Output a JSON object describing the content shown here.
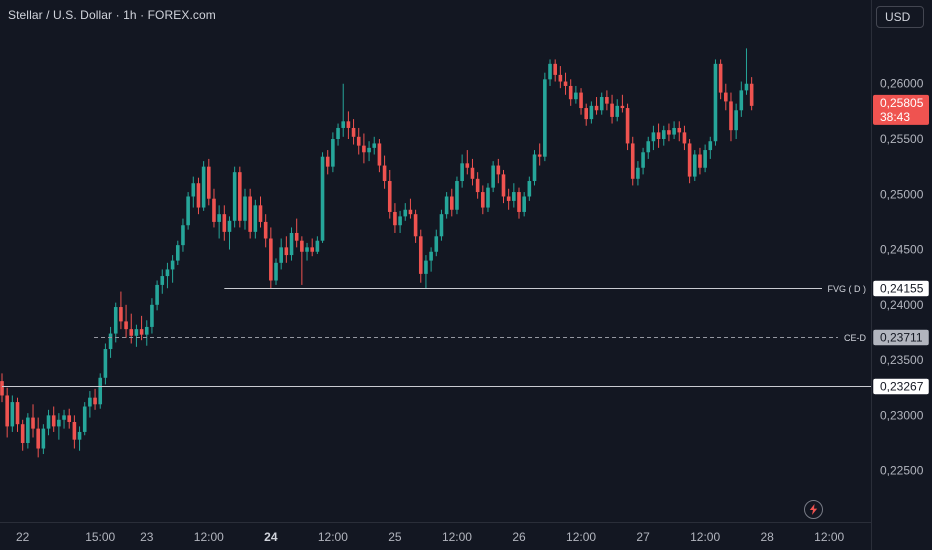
{
  "header": {
    "title": "Stellar / U.S. Dollar · 1h · FOREX.com",
    "currency": "USD"
  },
  "colors": {
    "background": "#131722",
    "up": "#26a69a",
    "down": "#ef5350",
    "text": "#d1d4dc",
    "axis_text": "#b2b5be",
    "line": "#d1d4dc"
  },
  "price_badge": {
    "price": "0,25805",
    "countdown": "38:43"
  },
  "lines": [
    {
      "name": "fvg-d-line",
      "label": "FVG ( D )",
      "value": "0,24155",
      "y": 0.24155,
      "style": "solid",
      "x_start": "23 18:00"
    },
    {
      "name": "ce-d-line",
      "label": "CE-D",
      "value": "0,23711",
      "y": 0.23711,
      "style": "dashed",
      "x_start": "22 13:00"
    },
    {
      "name": "level-line",
      "label": "",
      "value": "0,23267",
      "y": 0.23267,
      "style": "solid",
      "x_start": "22 00:00"
    }
  ],
  "chart_data": {
    "type": "candlestick",
    "title": "Stellar / U.S. Dollar · 1h · FOREX.com",
    "xlabel": "",
    "ylabel": "",
    "ylim": [
      0.2218,
      0.2645
    ],
    "y_ticks": [
      {
        "v": 0.26,
        "label": "0,26000"
      },
      {
        "v": 0.255,
        "label": "0,25500"
      },
      {
        "v": 0.25,
        "label": "0,25000"
      },
      {
        "v": 0.245,
        "label": "0,24500"
      },
      {
        "v": 0.24,
        "label": "0,24000"
      },
      {
        "v": 0.235,
        "label": "0,23500"
      },
      {
        "v": 0.23,
        "label": "0,23000"
      },
      {
        "v": 0.225,
        "label": "0,22500"
      }
    ],
    "x_ticks": [
      {
        "i": 4,
        "label": "22",
        "bold": false
      },
      {
        "i": 19,
        "label": "15:00",
        "bold": false
      },
      {
        "i": 28,
        "label": "23",
        "bold": false
      },
      {
        "i": 40,
        "label": "12:00",
        "bold": false
      },
      {
        "i": 52,
        "label": "24",
        "bold": true
      },
      {
        "i": 64,
        "label": "12:00",
        "bold": false
      },
      {
        "i": 76,
        "label": "25",
        "bold": false
      },
      {
        "i": 88,
        "label": "12:00",
        "bold": false
      },
      {
        "i": 100,
        "label": "26",
        "bold": false
      },
      {
        "i": 112,
        "label": "12:00",
        "bold": false
      },
      {
        "i": 124,
        "label": "27",
        "bold": false
      },
      {
        "i": 136,
        "label": "12:00",
        "bold": false
      },
      {
        "i": 148,
        "label": "28",
        "bold": false
      },
      {
        "i": 160,
        "label": "12:00",
        "bold": false
      }
    ],
    "grid": false,
    "legend": "none",
    "candles": [
      [
        0.2331,
        0.2338,
        0.2312,
        0.2318
      ],
      [
        0.2318,
        0.2325,
        0.228,
        0.229
      ],
      [
        0.229,
        0.2318,
        0.2285,
        0.2312
      ],
      [
        0.2312,
        0.2316,
        0.2285,
        0.2292
      ],
      [
        0.2292,
        0.2296,
        0.2268,
        0.2275
      ],
      [
        0.2275,
        0.2302,
        0.227,
        0.2298
      ],
      [
        0.2298,
        0.231,
        0.228,
        0.2288
      ],
      [
        0.2288,
        0.2298,
        0.2262,
        0.227
      ],
      [
        0.227,
        0.2292,
        0.2265,
        0.2288
      ],
      [
        0.2288,
        0.2305,
        0.2282,
        0.23
      ],
      [
        0.23,
        0.2308,
        0.2285,
        0.229
      ],
      [
        0.229,
        0.2302,
        0.2278,
        0.2296
      ],
      [
        0.2296,
        0.2305,
        0.2288,
        0.23
      ],
      [
        0.23,
        0.2306,
        0.2288,
        0.2294
      ],
      [
        0.2294,
        0.23,
        0.227,
        0.2278
      ],
      [
        0.2278,
        0.229,
        0.2268,
        0.2285
      ],
      [
        0.2285,
        0.2312,
        0.2282,
        0.2308
      ],
      [
        0.2308,
        0.2322,
        0.2298,
        0.2316
      ],
      [
        0.2316,
        0.2324,
        0.2305,
        0.231
      ],
      [
        0.231,
        0.2338,
        0.2306,
        0.2334
      ],
      [
        0.2334,
        0.2365,
        0.2328,
        0.236
      ],
      [
        0.236,
        0.238,
        0.2352,
        0.2374
      ],
      [
        0.2374,
        0.2402,
        0.2366,
        0.2398
      ],
      [
        0.2398,
        0.2412,
        0.2378,
        0.2385
      ],
      [
        0.2385,
        0.24,
        0.237,
        0.2378
      ],
      [
        0.2378,
        0.2392,
        0.2365,
        0.2372
      ],
      [
        0.2372,
        0.2382,
        0.2362,
        0.2378
      ],
      [
        0.2378,
        0.239,
        0.2368,
        0.2373
      ],
      [
        0.2373,
        0.2386,
        0.2363,
        0.238
      ],
      [
        0.238,
        0.2406,
        0.2374,
        0.24
      ],
      [
        0.24,
        0.2422,
        0.2395,
        0.2418
      ],
      [
        0.2418,
        0.2432,
        0.241,
        0.2426
      ],
      [
        0.2426,
        0.2438,
        0.2415,
        0.2432
      ],
      [
        0.2432,
        0.2445,
        0.242,
        0.244
      ],
      [
        0.244,
        0.2458,
        0.2436,
        0.2454
      ],
      [
        0.2454,
        0.2478,
        0.2448,
        0.2472
      ],
      [
        0.2472,
        0.2502,
        0.2468,
        0.2498
      ],
      [
        0.2498,
        0.2516,
        0.2488,
        0.251
      ],
      [
        0.251,
        0.2515,
        0.2482,
        0.2488
      ],
      [
        0.2488,
        0.253,
        0.2485,
        0.2525
      ],
      [
        0.2525,
        0.2532,
        0.249,
        0.2496
      ],
      [
        0.2496,
        0.2505,
        0.247,
        0.2475
      ],
      [
        0.2475,
        0.249,
        0.246,
        0.2482
      ],
      [
        0.2482,
        0.249,
        0.2458,
        0.2466
      ],
      [
        0.2466,
        0.248,
        0.245,
        0.2476
      ],
      [
        0.2476,
        0.2525,
        0.247,
        0.252
      ],
      [
        0.252,
        0.2525,
        0.247,
        0.2476
      ],
      [
        0.2476,
        0.2505,
        0.2468,
        0.2498
      ],
      [
        0.2498,
        0.2505,
        0.246,
        0.2466
      ],
      [
        0.2466,
        0.2495,
        0.246,
        0.249
      ],
      [
        0.249,
        0.2498,
        0.247,
        0.2475
      ],
      [
        0.2475,
        0.2482,
        0.2452,
        0.246
      ],
      [
        0.246,
        0.247,
        0.2415,
        0.2422
      ],
      [
        0.2422,
        0.2442,
        0.2418,
        0.2438
      ],
      [
        0.2438,
        0.246,
        0.2432,
        0.2452
      ],
      [
        0.2452,
        0.2462,
        0.2438,
        0.2445
      ],
      [
        0.2445,
        0.247,
        0.244,
        0.2465
      ],
      [
        0.2465,
        0.2478,
        0.2452,
        0.2458
      ],
      [
        0.2458,
        0.2462,
        0.2418,
        0.2448
      ],
      [
        0.2448,
        0.2456,
        0.244,
        0.2452
      ],
      [
        0.2452,
        0.246,
        0.2444,
        0.2448
      ],
      [
        0.2448,
        0.2462,
        0.2446,
        0.2458
      ],
      [
        0.2458,
        0.2538,
        0.2456,
        0.2534
      ],
      [
        0.2534,
        0.254,
        0.2518,
        0.2525
      ],
      [
        0.2525,
        0.2556,
        0.252,
        0.255
      ],
      [
        0.255,
        0.2564,
        0.2544,
        0.256
      ],
      [
        0.256,
        0.26,
        0.2552,
        0.2566
      ],
      [
        0.2566,
        0.2575,
        0.255,
        0.256
      ],
      [
        0.256,
        0.2568,
        0.2545,
        0.2552
      ],
      [
        0.2552,
        0.256,
        0.2536,
        0.2544
      ],
      [
        0.2544,
        0.2555,
        0.2528,
        0.2538
      ],
      [
        0.2538,
        0.2548,
        0.253,
        0.2542
      ],
      [
        0.2542,
        0.2552,
        0.2536,
        0.2546
      ],
      [
        0.2546,
        0.255,
        0.252,
        0.2526
      ],
      [
        0.2526,
        0.2535,
        0.2505,
        0.2512
      ],
      [
        0.2512,
        0.2522,
        0.2478,
        0.2484
      ],
      [
        0.2484,
        0.2492,
        0.2465,
        0.2472
      ],
      [
        0.2472,
        0.2485,
        0.2465,
        0.248
      ],
      [
        0.248,
        0.2492,
        0.2476,
        0.2486
      ],
      [
        0.2486,
        0.2496,
        0.2478,
        0.2482
      ],
      [
        0.2482,
        0.2486,
        0.2456,
        0.2462
      ],
      [
        0.2462,
        0.2468,
        0.242,
        0.2428
      ],
      [
        0.2428,
        0.2445,
        0.2415,
        0.244
      ],
      [
        0.244,
        0.2452,
        0.243,
        0.2448
      ],
      [
        0.2448,
        0.2468,
        0.2444,
        0.2462
      ],
      [
        0.2462,
        0.2486,
        0.2458,
        0.2482
      ],
      [
        0.2482,
        0.2502,
        0.2478,
        0.2498
      ],
      [
        0.2498,
        0.2505,
        0.248,
        0.2486
      ],
      [
        0.2486,
        0.2516,
        0.2482,
        0.2512
      ],
      [
        0.2512,
        0.2536,
        0.2506,
        0.2528
      ],
      [
        0.2528,
        0.254,
        0.2518,
        0.2524
      ],
      [
        0.2524,
        0.2532,
        0.2508,
        0.2514
      ],
      [
        0.2514,
        0.252,
        0.2496,
        0.2502
      ],
      [
        0.2502,
        0.2508,
        0.2482,
        0.2488
      ],
      [
        0.2488,
        0.251,
        0.2484,
        0.2506
      ],
      [
        0.2506,
        0.253,
        0.2502,
        0.2526
      ],
      [
        0.2526,
        0.2532,
        0.251,
        0.2518
      ],
      [
        0.2518,
        0.2522,
        0.2492,
        0.2498
      ],
      [
        0.2498,
        0.2505,
        0.2486,
        0.2494
      ],
      [
        0.2494,
        0.251,
        0.2488,
        0.2502
      ],
      [
        0.2502,
        0.2506,
        0.2478,
        0.2484
      ],
      [
        0.2484,
        0.2502,
        0.248,
        0.2498
      ],
      [
        0.2498,
        0.2516,
        0.2494,
        0.2512
      ],
      [
        0.2512,
        0.254,
        0.2508,
        0.2536
      ],
      [
        0.2536,
        0.2546,
        0.2526,
        0.2534
      ],
      [
        0.2534,
        0.261,
        0.253,
        0.2604
      ],
      [
        0.2604,
        0.2622,
        0.2598,
        0.2618
      ],
      [
        0.2618,
        0.2622,
        0.2602,
        0.2608
      ],
      [
        0.2608,
        0.2616,
        0.2596,
        0.2602
      ],
      [
        0.2602,
        0.261,
        0.259,
        0.2598
      ],
      [
        0.2598,
        0.2604,
        0.258,
        0.2586
      ],
      [
        0.2586,
        0.2598,
        0.2582,
        0.2592
      ],
      [
        0.2592,
        0.2596,
        0.2572,
        0.2578
      ],
      [
        0.2578,
        0.2582,
        0.2562,
        0.2568
      ],
      [
        0.2568,
        0.2584,
        0.2564,
        0.258
      ],
      [
        0.258,
        0.2588,
        0.2572,
        0.2576
      ],
      [
        0.2576,
        0.2592,
        0.2572,
        0.2588
      ],
      [
        0.2588,
        0.2594,
        0.2576,
        0.2582
      ],
      [
        0.2582,
        0.259,
        0.2564,
        0.257
      ],
      [
        0.257,
        0.2586,
        0.2566,
        0.258
      ],
      [
        0.258,
        0.259,
        0.2574,
        0.2578
      ],
      [
        0.2578,
        0.2582,
        0.254,
        0.2546
      ],
      [
        0.2546,
        0.2552,
        0.2508,
        0.2514
      ],
      [
        0.2514,
        0.253,
        0.2508,
        0.2524
      ],
      [
        0.2524,
        0.2542,
        0.2518,
        0.2538
      ],
      [
        0.2538,
        0.2552,
        0.2532,
        0.2548
      ],
      [
        0.2548,
        0.2562,
        0.254,
        0.2556
      ],
      [
        0.2556,
        0.2564,
        0.2542,
        0.255
      ],
      [
        0.255,
        0.2562,
        0.2544,
        0.2558
      ],
      [
        0.2558,
        0.2564,
        0.2548,
        0.2554
      ],
      [
        0.2554,
        0.2566,
        0.255,
        0.256
      ],
      [
        0.256,
        0.2566,
        0.2548,
        0.2556
      ],
      [
        0.2556,
        0.2562,
        0.254,
        0.2546
      ],
      [
        0.2546,
        0.255,
        0.251,
        0.2516
      ],
      [
        0.2516,
        0.254,
        0.2512,
        0.2536
      ],
      [
        0.2536,
        0.2542,
        0.2518,
        0.2524
      ],
      [
        0.2524,
        0.2545,
        0.252,
        0.254
      ],
      [
        0.254,
        0.2552,
        0.2532,
        0.2548
      ],
      [
        0.2548,
        0.2622,
        0.2544,
        0.2618
      ],
      [
        0.2618,
        0.2622,
        0.2586,
        0.2592
      ],
      [
        0.2592,
        0.26,
        0.2576,
        0.2584
      ],
      [
        0.2584,
        0.2592,
        0.2548,
        0.2558
      ],
      [
        0.2558,
        0.2582,
        0.255,
        0.2576
      ],
      [
        0.2576,
        0.2602,
        0.257,
        0.2594
      ],
      [
        0.2594,
        0.2632,
        0.259,
        0.26
      ],
      [
        0.26,
        0.2606,
        0.2576,
        0.258
      ]
    ]
  }
}
